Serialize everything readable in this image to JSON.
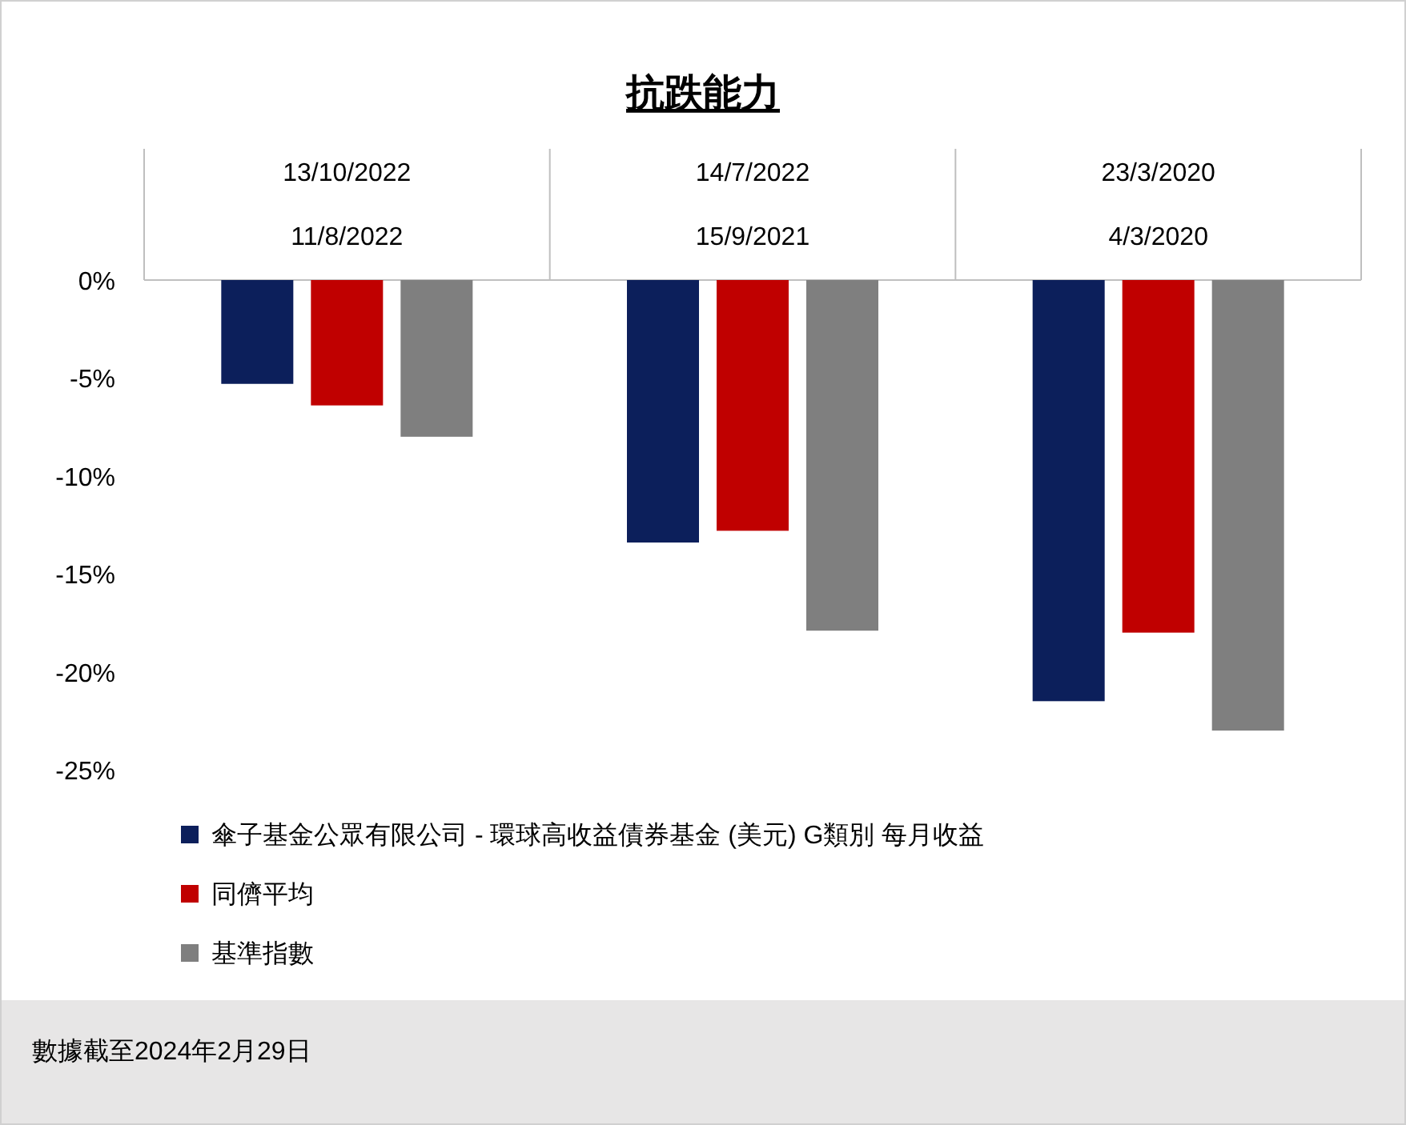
{
  "chart_data": {
    "type": "bar",
    "title": "抗跌能力",
    "categories": [
      "13/10/2022\n11/8/2022",
      "14/7/2022\n15/9/2021",
      "23/3/2020\n4/3/2020"
    ],
    "series": [
      {
        "name": "傘子基金公眾有限公司 - 環球高收益債券基金 (美元) G類別 每月收益",
        "color": "#0c1f5b",
        "values": [
          -5.3,
          -13.4,
          -21.5
        ]
      },
      {
        "name": "同儕平均",
        "color": "#c00000",
        "values": [
          -6.4,
          -12.8,
          -18.0
        ]
      },
      {
        "name": "基準指數",
        "color": "#7f7f7f",
        "values": [
          -8.0,
          -17.9,
          -23.0
        ]
      }
    ],
    "ylim": [
      -25,
      0
    ],
    "yticks": [
      {
        "value": 0,
        "label": "0%"
      },
      {
        "value": -5,
        "label": "-5%"
      },
      {
        "value": -10,
        "label": "-10%"
      },
      {
        "value": -15,
        "label": "-15%"
      },
      {
        "value": -20,
        "label": "-20%"
      },
      {
        "value": -25,
        "label": "-25%"
      }
    ],
    "grid": false,
    "legend": "bottom",
    "annotations": [
      "數據截至2024年2月29日"
    ]
  }
}
